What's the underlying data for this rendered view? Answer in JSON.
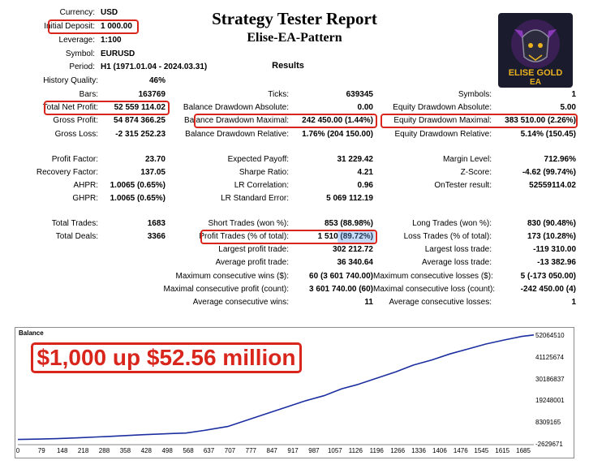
{
  "report": {
    "title": "Strategy Tester Report",
    "subtitle": "Elise-EA-Pattern",
    "section": "Results"
  },
  "logo": {
    "text1": "ELISE GOLD",
    "text2": "EA",
    "colors": {
      "bg": "#1b1b2e",
      "gold": "#e8b21f",
      "purple": "#8a3ab9"
    }
  },
  "settings": [
    {
      "label": "Currency:",
      "value": "USD"
    },
    {
      "label": "Initial Deposit:",
      "value": "1 000.00"
    },
    {
      "label": "Leverage:",
      "value": "1:100"
    },
    {
      "label": "Symbol:",
      "value": "EURUSD"
    },
    {
      "label": "Period:",
      "value": "H1 (1971.01.04 - 2024.03.31)"
    }
  ],
  "col1": [
    {
      "label": "History Quality:",
      "value": "46%"
    },
    {
      "label": "Bars:",
      "value": "163769"
    },
    {
      "label": "Total Net Profit:",
      "value": "52 559 114.02"
    },
    {
      "label": "Gross Profit:",
      "value": "54 874 366.25"
    },
    {
      "label": "Gross Loss:",
      "value": "-2 315 252.23"
    },
    {
      "label": "Profit Factor:",
      "value": "23.70"
    },
    {
      "label": "Recovery Factor:",
      "value": "137.05"
    },
    {
      "label": "AHPR:",
      "value": "1.0065 (0.65%)"
    },
    {
      "label": "GHPR:",
      "value": "1.0065 (0.65%)"
    },
    {
      "label": "Total Trades:",
      "value": "1683"
    },
    {
      "label": "Total Deals:",
      "value": "3366"
    }
  ],
  "col2": [
    {
      "label": "Ticks:",
      "value": "639345"
    },
    {
      "label": "Balance Drawdown Absolute:",
      "value": "0.00"
    },
    {
      "label": "Balance Drawdown Maximal:",
      "value": "242 450.00 (1.44%)"
    },
    {
      "label": "Balance Drawdown Relative:",
      "value": "1.76% (204 150.00)"
    },
    {
      "label": "Expected Payoff:",
      "value": "31 229.42"
    },
    {
      "label": "Sharpe Ratio:",
      "value": "4.21"
    },
    {
      "label": "LR Correlation:",
      "value": "0.96"
    },
    {
      "label": "LR Standard Error:",
      "value": "5 069 112.19"
    },
    {
      "label": "Short Trades (won %):",
      "value": "853 (88.98%)"
    },
    {
      "label": "Profit Trades (% of total):",
      "value": "1 510 (89.72%)"
    },
    {
      "label": "Largest profit trade:",
      "value": "302 212.72"
    },
    {
      "label": "Average profit trade:",
      "value": "36 340.64"
    },
    {
      "label": "Maximum consecutive wins ($):",
      "value": "60 (3 601 740.00)"
    },
    {
      "label": "Maximal consecutive profit (count):",
      "value": "3 601 740.00 (60)"
    },
    {
      "label": "Average consecutive wins:",
      "value": "11"
    }
  ],
  "col3": [
    {
      "label": "Symbols:",
      "value": "1"
    },
    {
      "label": "Equity Drawdown Absolute:",
      "value": "5.00"
    },
    {
      "label": "Equity Drawdown Maximal:",
      "value": "383 510.00 (2.26%)"
    },
    {
      "label": "Equity Drawdown Relative:",
      "value": "5.14% (150.45)"
    },
    {
      "label": "Margin Level:",
      "value": "712.96%"
    },
    {
      "label": "Z-Score:",
      "value": "-4.62 (99.74%)"
    },
    {
      "label": "OnTester result:",
      "value": "52559114.02"
    },
    {
      "label": "Long Trades (won %):",
      "value": "830 (90.48%)"
    },
    {
      "label": "Loss Trades (% of total):",
      "value": "173 (10.28%)"
    },
    {
      "label": "Largest loss trade:",
      "value": "-119 310.00"
    },
    {
      "label": "Average loss trade:",
      "value": "-13 382.96"
    },
    {
      "label": "Maximum consecutive losses ($):",
      "value": "5 (-173 050.00)"
    },
    {
      "label": "Maximal consecutive loss (count):",
      "value": "-242 450.00 (4)"
    },
    {
      "label": "Average consecutive losses:",
      "value": "1"
    }
  ],
  "banner": {
    "text": "$1,000 up $52.56 million",
    "color": "#d9261c"
  },
  "chart_data": {
    "type": "line",
    "title": "Balance",
    "xlabel": "",
    "ylabel": "",
    "x_ticks": [
      "0",
      "79",
      "148",
      "218",
      "288",
      "358",
      "428",
      "498",
      "568",
      "637",
      "707",
      "777",
      "847",
      "917",
      "987",
      "1057",
      "1126",
      "1196",
      "1266",
      "1336",
      "1406",
      "1476",
      "1545",
      "1615",
      "1685"
    ],
    "y_ticks": [
      "52064510",
      "41125674",
      "30186837",
      "19248001",
      "8309165",
      "-2629671"
    ],
    "ylim": [
      -2629671,
      52064510
    ],
    "xlim": [
      0,
      1720
    ],
    "series": [
      {
        "color": "#1c2fa0",
        "x": [
          0,
          60,
          130,
          200,
          300,
          420,
          520,
          560,
          620,
          700,
          760,
          820,
          860,
          900,
          960,
          1020,
          1080,
          1130,
          1200,
          1260,
          1320,
          1380,
          1440,
          1500,
          1560,
          1620,
          1680,
          1720
        ],
        "y": [
          1000,
          150000,
          400000,
          800000,
          1500000,
          2400000,
          3000000,
          3200000,
          4500000,
          6500000,
          9500000,
          12500000,
          14500000,
          16500000,
          19500000,
          22000000,
          25500000,
          27500000,
          31000000,
          34000000,
          37500000,
          40000000,
          43000000,
          45500000,
          48000000,
          50000000,
          51800000,
          52560114
        ]
      }
    ],
    "grid": false
  }
}
